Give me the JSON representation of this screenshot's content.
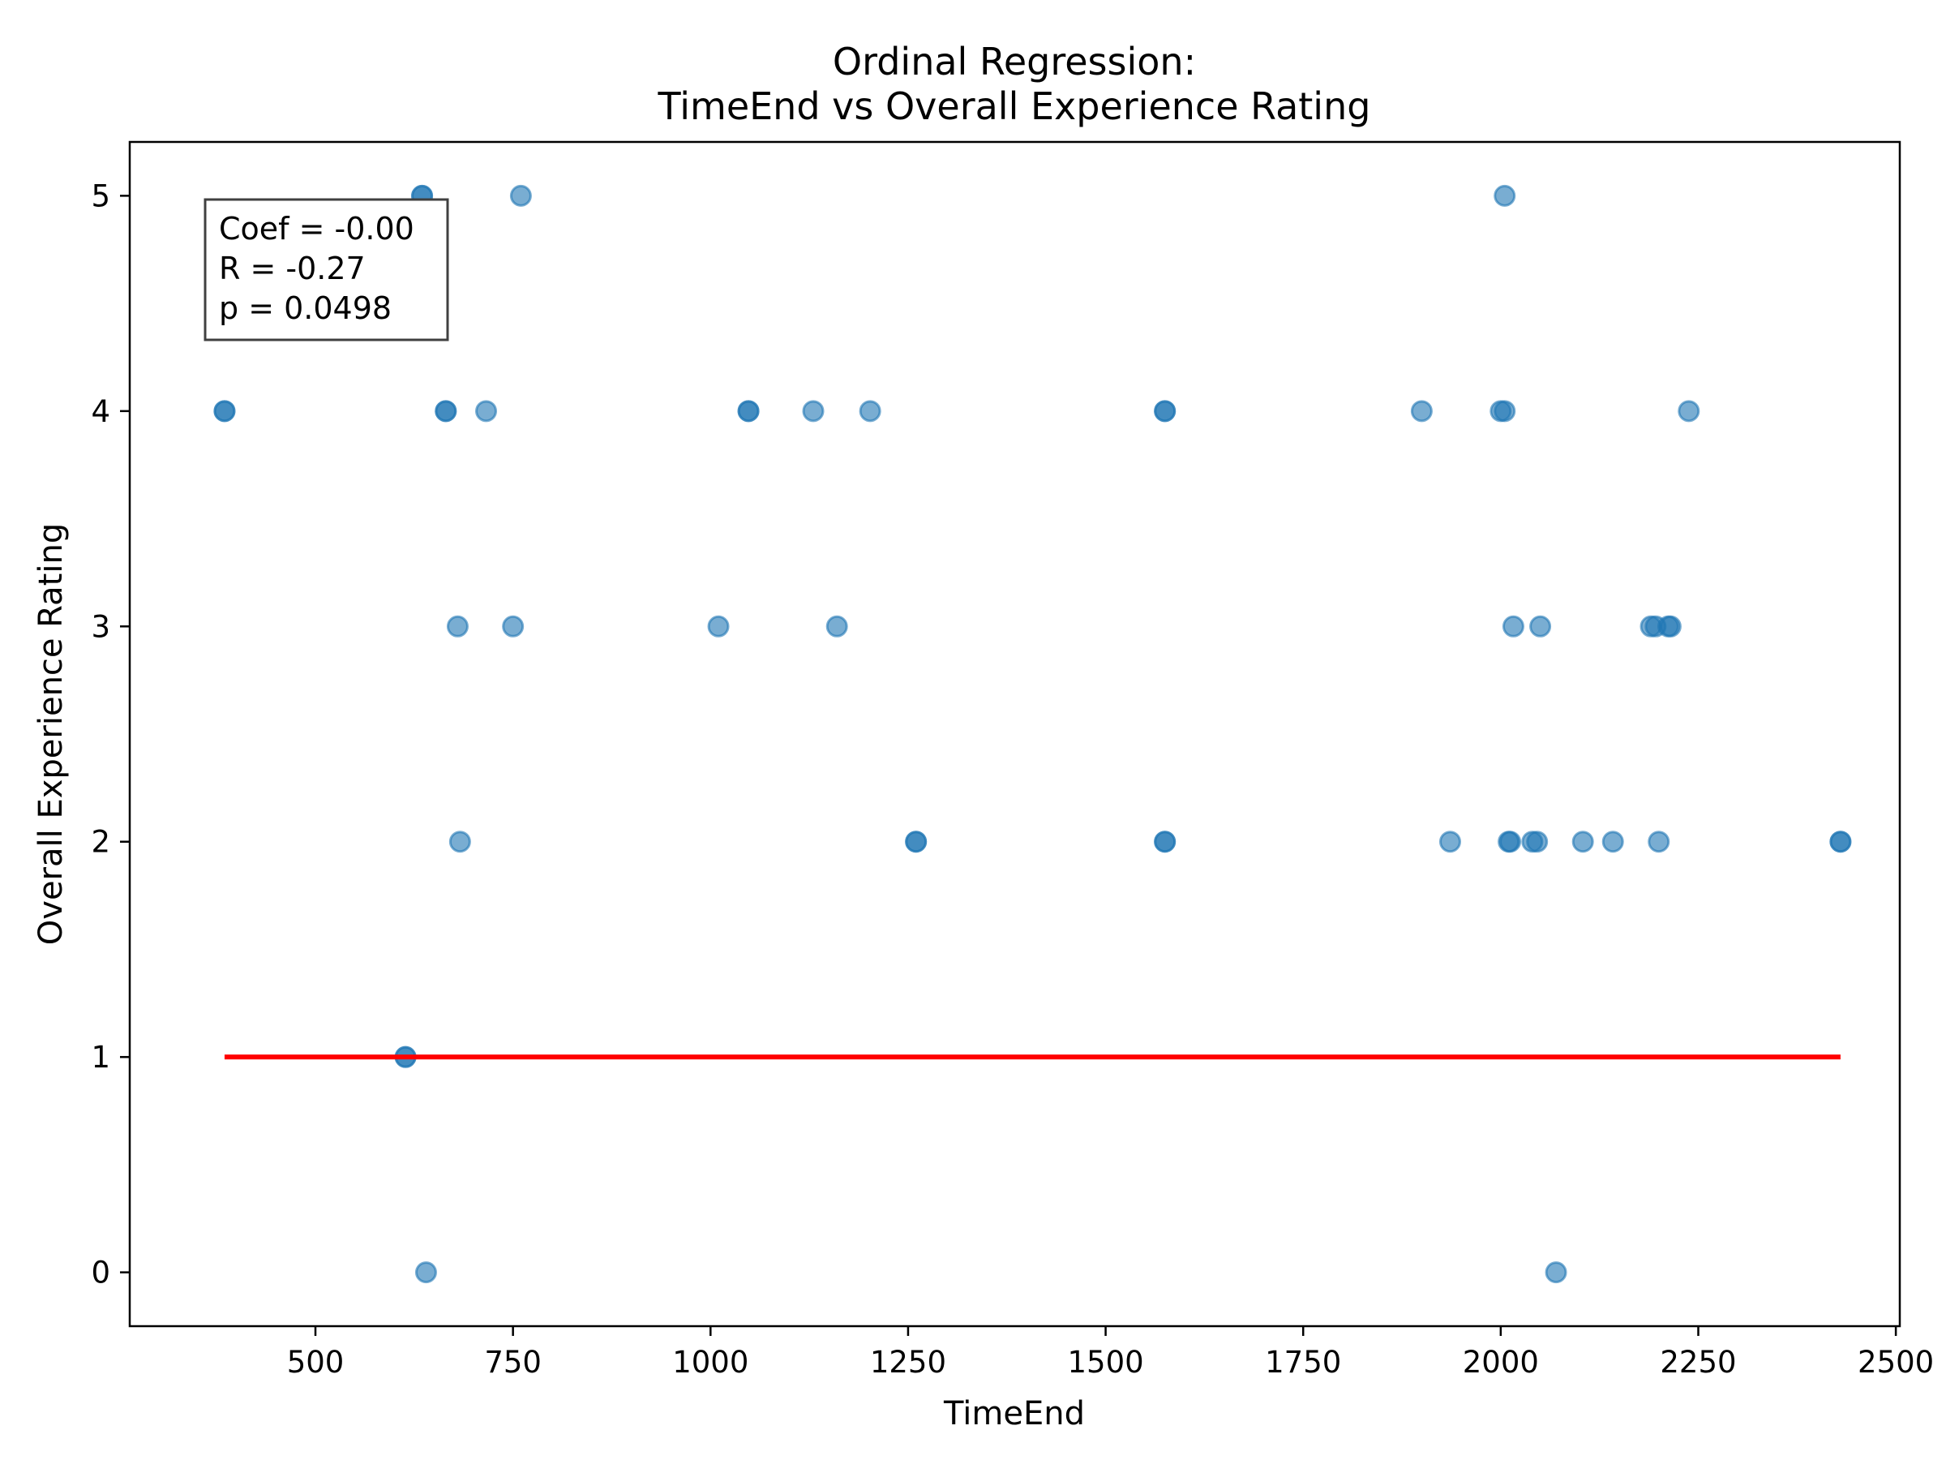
{
  "chart_data": {
    "type": "scatter",
    "title_lines": [
      "Ordinal Regression:",
      "TimeEnd vs Overall Experience Rating"
    ],
    "xlabel": "TimeEnd",
    "ylabel": "Overall Experience Rating",
    "xlim": [
      265,
      2505
    ],
    "ylim": [
      -0.25,
      5.25
    ],
    "xticks": [
      500,
      750,
      1000,
      1250,
      1500,
      1750,
      2000,
      2250,
      2500
    ],
    "yticks": [
      0,
      1,
      2,
      3,
      4,
      5
    ],
    "grid": false,
    "legend": null,
    "stats_box": {
      "position": "top-left",
      "lines": [
        "Coef = -0.00",
        "R = -0.27",
        "p = 0.0498"
      ]
    },
    "point_color": "#1f77b4",
    "point_alpha": 0.6,
    "fit_line": {
      "color": "#ff0000",
      "x": [
        385,
        2430
      ],
      "y": [
        1,
        1
      ]
    },
    "points": [
      {
        "x": 385,
        "y": 4
      },
      {
        "x": 385,
        "y": 4
      },
      {
        "x": 614,
        "y": 1
      },
      {
        "x": 614,
        "y": 1
      },
      {
        "x": 635,
        "y": 5
      },
      {
        "x": 635,
        "y": 5
      },
      {
        "x": 640,
        "y": 0
      },
      {
        "x": 665,
        "y": 4
      },
      {
        "x": 665,
        "y": 4
      },
      {
        "x": 680,
        "y": 3
      },
      {
        "x": 683,
        "y": 2
      },
      {
        "x": 716,
        "y": 4
      },
      {
        "x": 750,
        "y": 3
      },
      {
        "x": 760,
        "y": 5
      },
      {
        "x": 1010,
        "y": 3
      },
      {
        "x": 1048,
        "y": 4
      },
      {
        "x": 1048,
        "y": 4
      },
      {
        "x": 1130,
        "y": 4
      },
      {
        "x": 1160,
        "y": 3
      },
      {
        "x": 1202,
        "y": 4
      },
      {
        "x": 1260,
        "y": 2
      },
      {
        "x": 1260,
        "y": 2
      },
      {
        "x": 1575,
        "y": 4
      },
      {
        "x": 1575,
        "y": 4
      },
      {
        "x": 1575,
        "y": 2
      },
      {
        "x": 1575,
        "y": 2
      },
      {
        "x": 1900,
        "y": 4
      },
      {
        "x": 1936,
        "y": 2
      },
      {
        "x": 2000,
        "y": 4
      },
      {
        "x": 2005,
        "y": 4
      },
      {
        "x": 2005,
        "y": 5
      },
      {
        "x": 2010,
        "y": 2
      },
      {
        "x": 2012,
        "y": 2
      },
      {
        "x": 2016,
        "y": 3
      },
      {
        "x": 2040,
        "y": 2
      },
      {
        "x": 2046,
        "y": 2
      },
      {
        "x": 2050,
        "y": 3
      },
      {
        "x": 2070,
        "y": 0
      },
      {
        "x": 2104,
        "y": 2
      },
      {
        "x": 2142,
        "y": 2
      },
      {
        "x": 2190,
        "y": 3
      },
      {
        "x": 2196,
        "y": 3
      },
      {
        "x": 2200,
        "y": 2
      },
      {
        "x": 2212,
        "y": 3
      },
      {
        "x": 2215,
        "y": 3
      },
      {
        "x": 2238,
        "y": 4
      },
      {
        "x": 2430,
        "y": 2
      },
      {
        "x": 2430,
        "y": 2
      }
    ]
  }
}
